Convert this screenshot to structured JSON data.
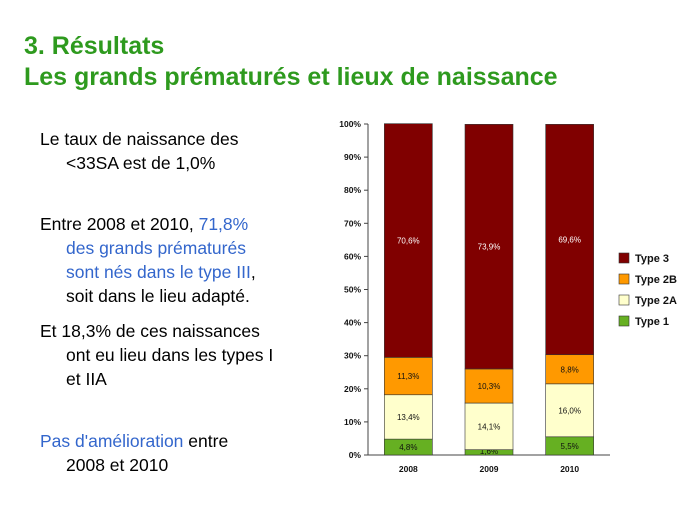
{
  "slide": {
    "title_line1": "3. Résultats",
    "title_line2": "Les grands prématurés et lieux de naissance",
    "colors": {
      "title": "#2e9a1e",
      "highlight": "#3366cc"
    }
  },
  "text": {
    "b1_l1": "Le taux de naissance des",
    "b1_l2": "<33SA est de 1,0%",
    "b2_l1_a": "Entre 2008 et 2010, ",
    "b2_l1_b": "71,8%",
    "b2_l2": "des grands prématurés",
    "b2_l3_a": "sont nés dans le type III",
    "b2_l3_b": ",",
    "b2_l4": "soit dans le lieu adapté.",
    "b3_l1": "Et 18,3% de ces naissances",
    "b3_l2": "ont eu lieu dans les types I",
    "b3_l3": "et IIA",
    "b4_l1_a": "Pas d'amélioration",
    "b4_l1_b": " entre",
    "b4_l2": "2008 et 2010"
  },
  "chart_data": {
    "type": "bar",
    "stacked": true,
    "percent_stacked": true,
    "categories": [
      "2008",
      "2009",
      "2010"
    ],
    "series": [
      {
        "name": "Type 1",
        "color": "#66b022",
        "values": [
          4.8,
          1.6,
          5.5
        ],
        "labels": [
          "4,8%",
          "1,6%",
          "5,5%"
        ]
      },
      {
        "name": "Type 2A",
        "color": "#ffffcc",
        "values": [
          13.4,
          14.1,
          16.0
        ],
        "labels": [
          "13,4%",
          "14,1%",
          "16,0%"
        ]
      },
      {
        "name": "Type 2B",
        "color": "#ff9900",
        "values": [
          11.3,
          10.3,
          8.8
        ],
        "labels": [
          "11,3%",
          "10,3%",
          "8,8%"
        ]
      },
      {
        "name": "Type 3",
        "color": "#800000",
        "values": [
          70.6,
          73.9,
          69.6
        ],
        "labels": [
          "70,6%",
          "73,9%",
          "69,6%"
        ]
      }
    ],
    "ylim": [
      0,
      100
    ],
    "yticks": [
      "0%",
      "10%",
      "20%",
      "30%",
      "40%",
      "50%",
      "60%",
      "70%",
      "80%",
      "90%",
      "100%"
    ],
    "grid": false,
    "legend_position": "right",
    "legend_order": [
      "Type 3",
      "Type 2B",
      "Type 2A",
      "Type 1"
    ]
  }
}
